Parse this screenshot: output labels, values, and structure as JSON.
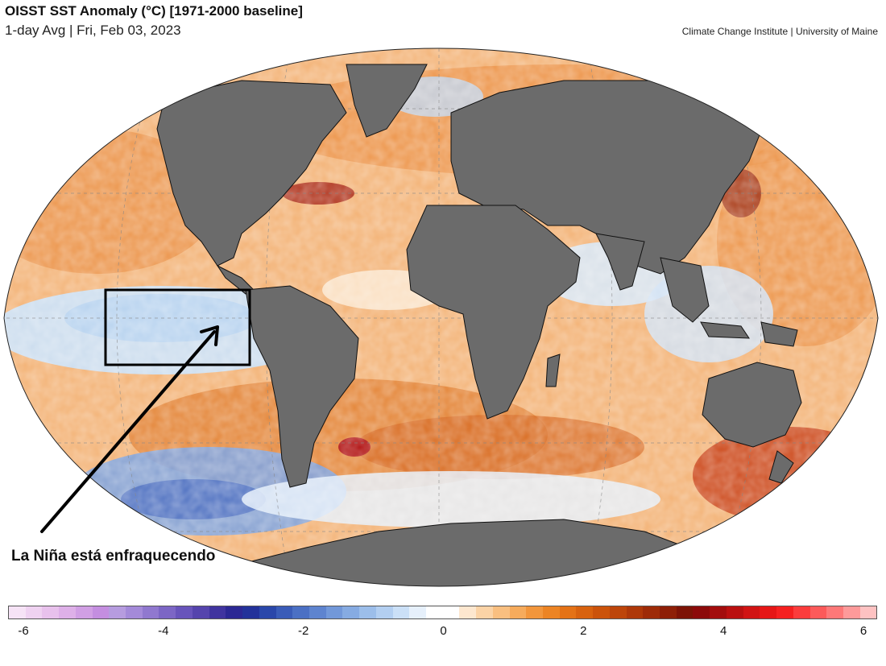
{
  "header": {
    "title": "OISST SST Anomaly (°C) [1971-2000 baseline]",
    "subtitle": "1-day Avg | Fri, Feb 03, 2023",
    "credit": "Climate Change Institute | University of Maine"
  },
  "map": {
    "projection": "robinson-like global",
    "land_color": "#6b6b6b",
    "ice_color": "#ffffff",
    "highlight_box": {
      "label": "tropical Pacific (Niño 3.4 region)"
    },
    "annotation": "La Niña está enfraquecendo"
  },
  "colorbar": {
    "ticks": [
      "-6",
      "-4",
      "-2",
      "0",
      "2",
      "4",
      "6"
    ],
    "tick_values": [
      -6,
      -4,
      -2,
      0,
      2,
      4,
      6
    ],
    "range": [
      -6,
      6
    ],
    "colors": [
      "#f6e3f6",
      "#efd2f1",
      "#e8c1ec",
      "#deb0e8",
      "#d19fe4",
      "#c48ee0",
      "#b69cdf",
      "#a48ad9",
      "#9078cf",
      "#7c66c5",
      "#6854bb",
      "#5544ad",
      "#40349f",
      "#2c2894",
      "#23329a",
      "#2a47aa",
      "#3a5cb8",
      "#4b70c4",
      "#5e84cf",
      "#7298d9",
      "#86abe2",
      "#9cbeea",
      "#b3cff1",
      "#cbe0f7",
      "#e6f0fb",
      "#ffffff",
      "#ffffff",
      "#fde7cf",
      "#fbd3a6",
      "#f9bf80",
      "#f6ab5c",
      "#f2963c",
      "#ec8424",
      "#e47216",
      "#d8620f",
      "#cb530b",
      "#bd450a",
      "#ae3809",
      "#9e2b08",
      "#8e1f07",
      "#7d1306",
      "#8c0a0a",
      "#a30d0d",
      "#ba1010",
      "#d11414",
      "#e61616",
      "#f52020",
      "#fb3c3c",
      "#fc5a5a",
      "#fd7878",
      "#fd9a9a",
      "#fec2c2"
    ]
  }
}
